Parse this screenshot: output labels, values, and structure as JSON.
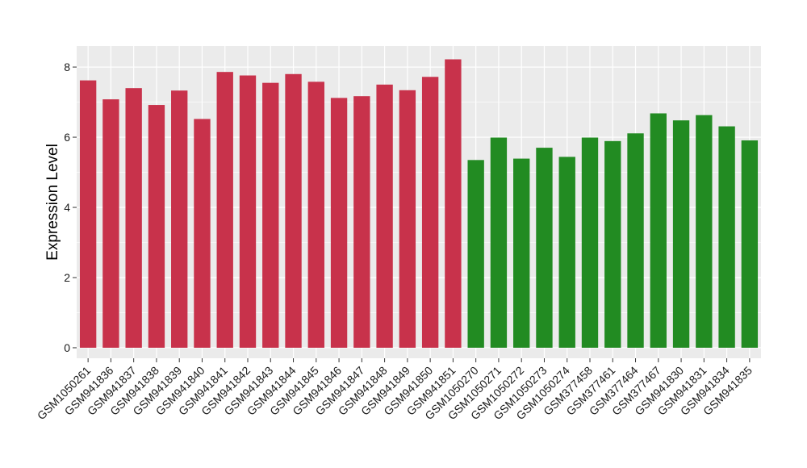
{
  "chart_data": {
    "type": "bar",
    "title": "",
    "xlabel": "",
    "ylabel": "Expression Level",
    "ylim": [
      -0.3,
      8.6
    ],
    "yticks": [
      0,
      2,
      4,
      6,
      8
    ],
    "grid": true,
    "categories": [
      "GSM1050261",
      "GSM941836",
      "GSM941837",
      "GSM941838",
      "GSM941839",
      "GSM941840",
      "GSM941841",
      "GSM941842",
      "GSM941843",
      "GSM941844",
      "GSM941845",
      "GSM941846",
      "GSM941847",
      "GSM941848",
      "GSM941849",
      "GSM941850",
      "GSM941851",
      "GSM1050270",
      "GSM1050271",
      "GSM1050272",
      "GSM1050273",
      "GSM1050274",
      "GSM377458",
      "GSM377461",
      "GSM377464",
      "GSM377467",
      "GSM941830",
      "GSM941831",
      "GSM941834",
      "GSM941835"
    ],
    "values": [
      7.62,
      7.08,
      7.4,
      6.92,
      7.33,
      6.52,
      7.86,
      7.76,
      7.55,
      7.8,
      7.58,
      7.12,
      7.17,
      7.5,
      7.34,
      7.72,
      8.22,
      5.35,
      5.99,
      5.39,
      5.7,
      5.44,
      5.99,
      5.89,
      6.11,
      6.68,
      6.48,
      6.63,
      6.31,
      5.91
    ],
    "bar_colors": [
      "#c8324b",
      "#c8324b",
      "#c8324b",
      "#c8324b",
      "#c8324b",
      "#c8324b",
      "#c8324b",
      "#c8324b",
      "#c8324b",
      "#c8324b",
      "#c8324b",
      "#c8324b",
      "#c8324b",
      "#c8324b",
      "#c8324b",
      "#c8324b",
      "#c8324b",
      "#228b22",
      "#228b22",
      "#228b22",
      "#228b22",
      "#228b22",
      "#228b22",
      "#228b22",
      "#228b22",
      "#228b22",
      "#228b22",
      "#228b22",
      "#228b22",
      "#228b22"
    ]
  },
  "colors": {
    "panel_background": "#ebebeb",
    "grid_line": "#ffffff",
    "tick_mark": "#333333"
  }
}
